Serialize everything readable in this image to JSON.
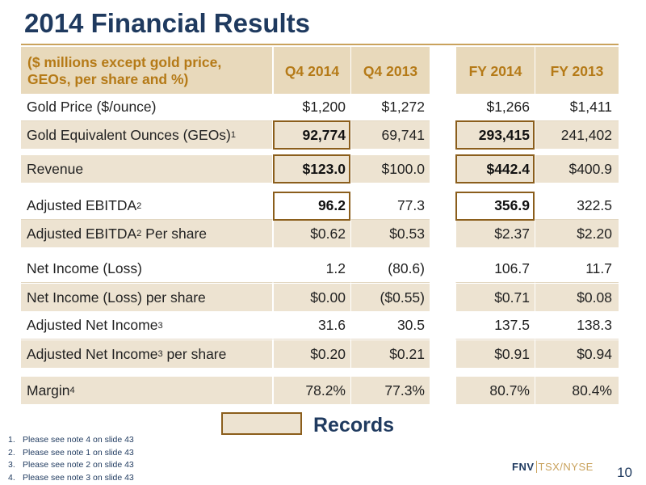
{
  "title": "2014 Financial Results",
  "header": {
    "label_line1": "($ millions except gold price,",
    "label_line2": "GEOs, per share and %)",
    "q4_2014": "Q4 2014",
    "q4_2013": "Q4 2013",
    "fy_2014": "FY 2014",
    "fy_2013": "FY 2013"
  },
  "rows": [
    {
      "label": "Gold Price ($/ounce)",
      "sup": "",
      "label_suffix": "",
      "q4_2014": "$1,200",
      "q4_2013": "$1,272",
      "fy_2014": "$1,266",
      "fy_2013": "$1,411"
    },
    {
      "label": "Gold Equivalent Ounces (GEOs)",
      "sup": "1",
      "label_suffix": "",
      "q4_2014": "92,774",
      "q4_2013": "69,741",
      "fy_2014": "293,415",
      "fy_2013": "241,402"
    },
    {
      "label": "Revenue",
      "sup": "",
      "label_suffix": "",
      "q4_2014": "$123.0",
      "q4_2013": "$100.0",
      "fy_2014": "$442.4",
      "fy_2013": "$400.9"
    },
    {
      "label": "Adjusted EBITDA",
      "sup": "2",
      "label_suffix": "",
      "q4_2014": "96.2",
      "q4_2013": "77.3",
      "fy_2014": "356.9",
      "fy_2013": "322.5"
    },
    {
      "label": "Adjusted EBITDA",
      "sup": "2",
      "label_suffix": " Per share",
      "q4_2014": "$0.62",
      "q4_2013": "$0.53",
      "fy_2014": "$2.37",
      "fy_2013": "$2.20"
    },
    {
      "label": "Net Income (Loss)",
      "sup": "",
      "label_suffix": "",
      "q4_2014": "1.2",
      "q4_2013": "(80.6)",
      "fy_2014": "106.7",
      "fy_2013": "11.7"
    },
    {
      "label": "Net Income (Loss) per share",
      "sup": "",
      "label_suffix": "",
      "q4_2014": "$0.00",
      "q4_2013": "($0.55)",
      "fy_2014": "$0.71",
      "fy_2013": "$0.08"
    },
    {
      "label": "Adjusted Net Income",
      "sup": "3",
      "label_suffix": "",
      "q4_2014": "31.6",
      "q4_2013": "30.5",
      "fy_2014": "137.5",
      "fy_2013": "138.3"
    },
    {
      "label": "Adjusted Net Income",
      "sup": "3",
      "label_suffix": " per share",
      "q4_2014": "$0.20",
      "q4_2013": "$0.21",
      "fy_2014": "$0.91",
      "fy_2013": "$0.94"
    },
    {
      "label": "Margin",
      "sup": "4",
      "label_suffix": "",
      "q4_2014": "78.2%",
      "q4_2013": "77.3%",
      "fy_2014": "80.7%",
      "fy_2013": "80.4%"
    }
  ],
  "legend": {
    "label": "Records"
  },
  "notes": [
    {
      "num": "1.",
      "text": "Please see note 4 on slide 43"
    },
    {
      "num": "2.",
      "text": "Please see note 1 on slide 43"
    },
    {
      "num": "3.",
      "text": "Please see note 2 on slide 43"
    },
    {
      "num": "4.",
      "text": "Please see note 3 on slide 43"
    }
  ],
  "footer": {
    "logo_company": "FNV",
    "logo_exchange": "TSX/NYSE",
    "page_number": "10"
  },
  "colors": {
    "title": "#1f3a5f",
    "header_text": "#b57a17",
    "shade": "#ede3d1",
    "record_border": "#8b5e1c",
    "accent": "#c9a25c"
  }
}
